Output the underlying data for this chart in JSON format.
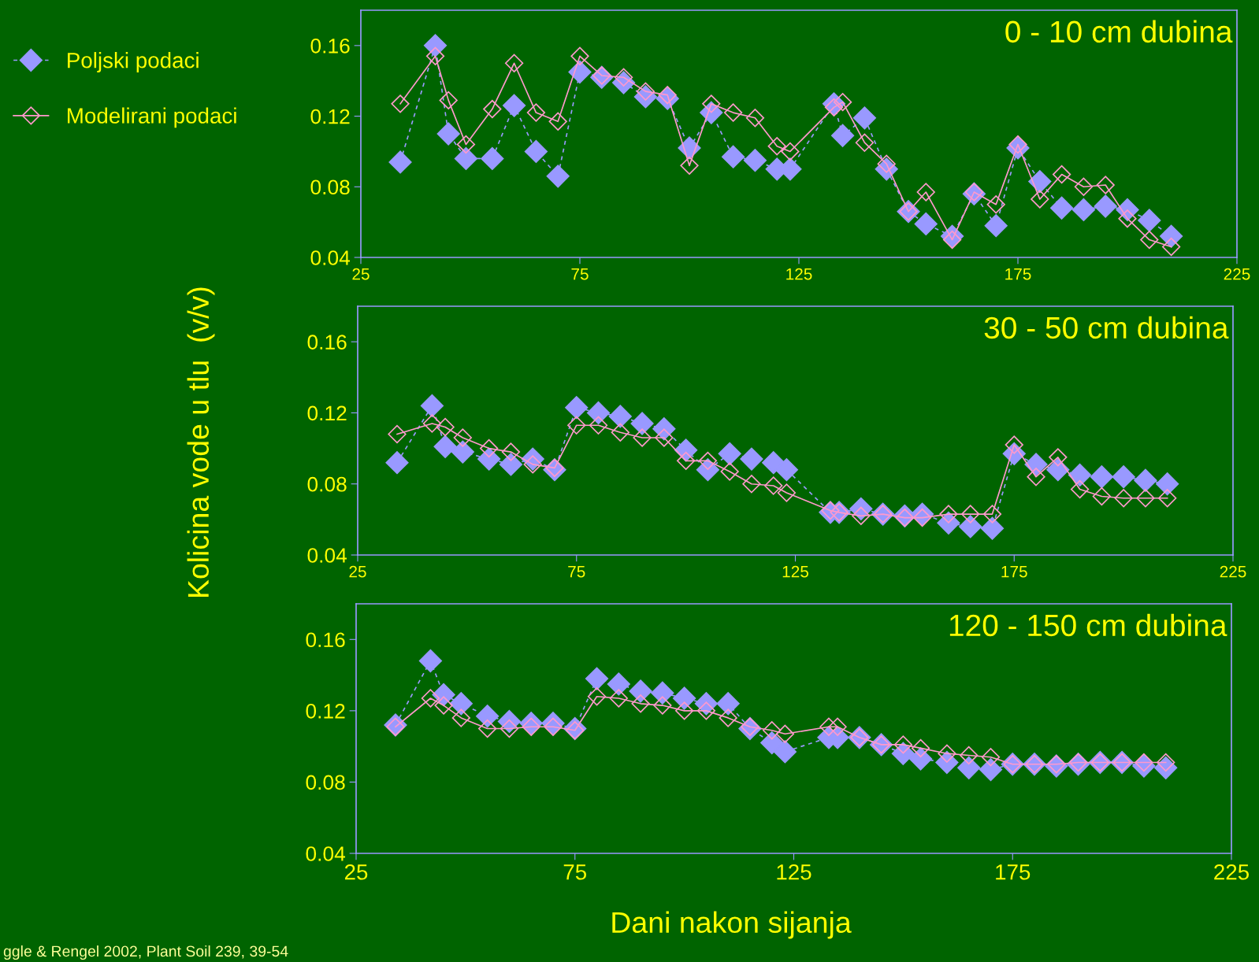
{
  "chart_data": [
    {
      "type": "line",
      "title": "0 - 10 cm dubina",
      "legend": "top left",
      "marker": "diamond",
      "x": [
        34,
        42,
        45,
        49,
        55,
        60,
        65,
        70,
        75,
        80,
        85,
        90,
        95,
        100,
        105,
        110,
        115,
        120,
        123,
        133,
        135,
        140,
        145,
        150,
        154,
        160,
        165,
        170,
        175,
        180,
        185,
        190,
        195,
        200,
        205,
        210
      ],
      "xlim": [
        25,
        225
      ],
      "ylim": [
        0.04,
        0.18
      ],
      "xticks": [
        25,
        75,
        125,
        175,
        225
      ],
      "yticks": [
        0.04,
        0.08,
        0.12,
        0.16
      ],
      "series": [
        {
          "name": "Poljski podaci",
          "color": "#9999ff",
          "line_style": "dashed",
          "values": [
            0.094,
            0.16,
            0.11,
            0.096,
            0.096,
            0.126,
            0.1,
            0.086,
            0.145,
            0.142,
            0.139,
            0.131,
            0.13,
            0.102,
            0.122,
            0.097,
            0.095,
            0.09,
            0.09,
            0.127,
            0.109,
            0.119,
            0.09,
            0.066,
            0.059,
            0.052,
            0.076,
            0.058,
            0.102,
            0.083,
            0.068,
            0.067,
            0.069,
            0.067,
            0.061,
            0.052
          ]
        },
        {
          "name": "Modelirani podaci",
          "color": "#ff99cc",
          "line_style": "solid",
          "values": [
            0.127,
            0.154,
            0.129,
            0.104,
            0.124,
            0.15,
            0.122,
            0.117,
            0.154,
            0.143,
            0.142,
            0.134,
            0.132,
            0.092,
            0.127,
            0.122,
            0.119,
            0.103,
            0.1,
            0.125,
            0.128,
            0.105,
            0.093,
            0.066,
            0.077,
            0.05,
            0.077,
            0.07,
            0.104,
            0.073,
            0.087,
            0.08,
            0.081,
            0.062,
            0.05,
            0.046
          ]
        }
      ]
    },
    {
      "type": "line",
      "title": "30 - 50 cm dubina",
      "ylabel": "Kolicina vode u tlu  (v/v)",
      "marker": "diamond",
      "x": [
        34,
        42,
        45,
        49,
        55,
        60,
        65,
        70,
        75,
        80,
        85,
        90,
        95,
        100,
        105,
        110,
        115,
        120,
        123,
        133,
        135,
        140,
        145,
        150,
        154,
        160,
        165,
        170,
        175,
        180,
        185,
        190,
        195,
        200,
        205,
        210
      ],
      "xlim": [
        25,
        225
      ],
      "ylim": [
        0.04,
        0.18
      ],
      "xticks": [
        25,
        75,
        125,
        175,
        225
      ],
      "yticks": [
        0.04,
        0.08,
        0.12,
        0.16
      ],
      "series": [
        {
          "color": "#9999ff",
          "line_style": "dashed",
          "values": [
            0.092,
            0.124,
            0.101,
            0.098,
            0.094,
            0.091,
            0.094,
            0.088,
            0.123,
            0.12,
            0.118,
            0.114,
            0.111,
            0.099,
            0.088,
            0.097,
            0.094,
            0.092,
            0.088,
            0.064,
            0.064,
            0.066,
            0.063,
            0.062,
            0.063,
            0.058,
            0.056,
            0.055,
            0.097,
            0.091,
            0.088,
            0.085,
            0.084,
            0.084,
            0.082,
            0.08
          ]
        },
        {
          "color": "#ff99cc",
          "line_style": "solid",
          "values": [
            0.108,
            0.114,
            0.112,
            0.106,
            0.1,
            0.098,
            0.091,
            0.089,
            0.113,
            0.113,
            0.109,
            0.106,
            0.106,
            0.093,
            0.093,
            0.087,
            0.08,
            0.079,
            0.075,
            0.065,
            0.064,
            0.062,
            0.063,
            0.061,
            0.061,
            0.063,
            0.063,
            0.063,
            0.102,
            0.084,
            0.095,
            0.077,
            0.073,
            0.072,
            0.072,
            0.072
          ]
        }
      ]
    },
    {
      "type": "line",
      "title": "120 - 150 cm dubina",
      "xlabel": "Dani nakon sijanja",
      "marker": "diamond",
      "x": [
        34,
        42,
        45,
        49,
        55,
        60,
        65,
        70,
        75,
        80,
        85,
        90,
        95,
        100,
        105,
        110,
        115,
        120,
        123,
        133,
        135,
        140,
        145,
        150,
        154,
        160,
        165,
        170,
        175,
        180,
        185,
        190,
        195,
        200,
        205,
        210
      ],
      "xlim": [
        25,
        225
      ],
      "ylim": [
        0.04,
        0.18
      ],
      "xticks": [
        25,
        75,
        125,
        175,
        225
      ],
      "yticks": [
        0.04,
        0.08,
        0.12,
        0.16
      ],
      "annotations": [
        "ggle & Rengel 2002, Plant Soil 239, 39-54"
      ],
      "series": [
        {
          "color": "#9999ff",
          "line_style": "dashed",
          "values": [
            0.112,
            0.148,
            0.129,
            0.124,
            0.117,
            0.114,
            0.113,
            0.113,
            0.11,
            0.138,
            0.135,
            0.131,
            0.13,
            0.127,
            0.124,
            0.124,
            0.11,
            0.102,
            0.097,
            0.105,
            0.105,
            0.105,
            0.101,
            0.096,
            0.093,
            0.091,
            0.088,
            0.087,
            0.09,
            0.09,
            0.089,
            0.09,
            0.091,
            0.091,
            0.089,
            0.088
          ]
        },
        {
          "color": "#ff99cc",
          "line_style": "solid",
          "values": [
            0.111,
            0.127,
            0.123,
            0.116,
            0.11,
            0.11,
            0.111,
            0.111,
            0.109,
            0.128,
            0.127,
            0.124,
            0.123,
            0.12,
            0.12,
            0.116,
            0.111,
            0.109,
            0.107,
            0.111,
            0.111,
            0.105,
            0.101,
            0.101,
            0.099,
            0.096,
            0.095,
            0.094,
            0.09,
            0.09,
            0.09,
            0.091,
            0.091,
            0.091,
            0.091,
            0.091
          ]
        }
      ]
    }
  ]
}
